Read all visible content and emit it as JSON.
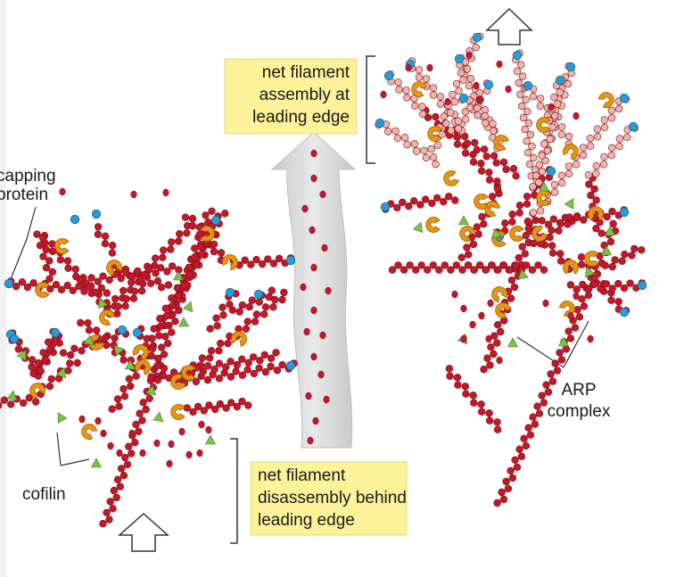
{
  "labels": {
    "capping_line1": "capping",
    "capping_line2": "protein",
    "cofilin": "cofilin",
    "arp_line1": "ARP",
    "arp_line2": "complex"
  },
  "boxes": {
    "assembly": [
      "net filament",
      "assembly at",
      "leading edge"
    ],
    "disassembly": [
      "net filament",
      "disassembly behind",
      "leading edge"
    ]
  },
  "colors": {
    "actin_old": "#c3182a",
    "actin_new": "#f0b4ae",
    "actin_outline": "#7a0d12",
    "capping_protein": "#2a9bd6",
    "arp_complex": "#e8950f",
    "cofilin": "#7cc24a",
    "label_box": "#fbf29a",
    "big_arrow": "#dcdedd"
  }
}
